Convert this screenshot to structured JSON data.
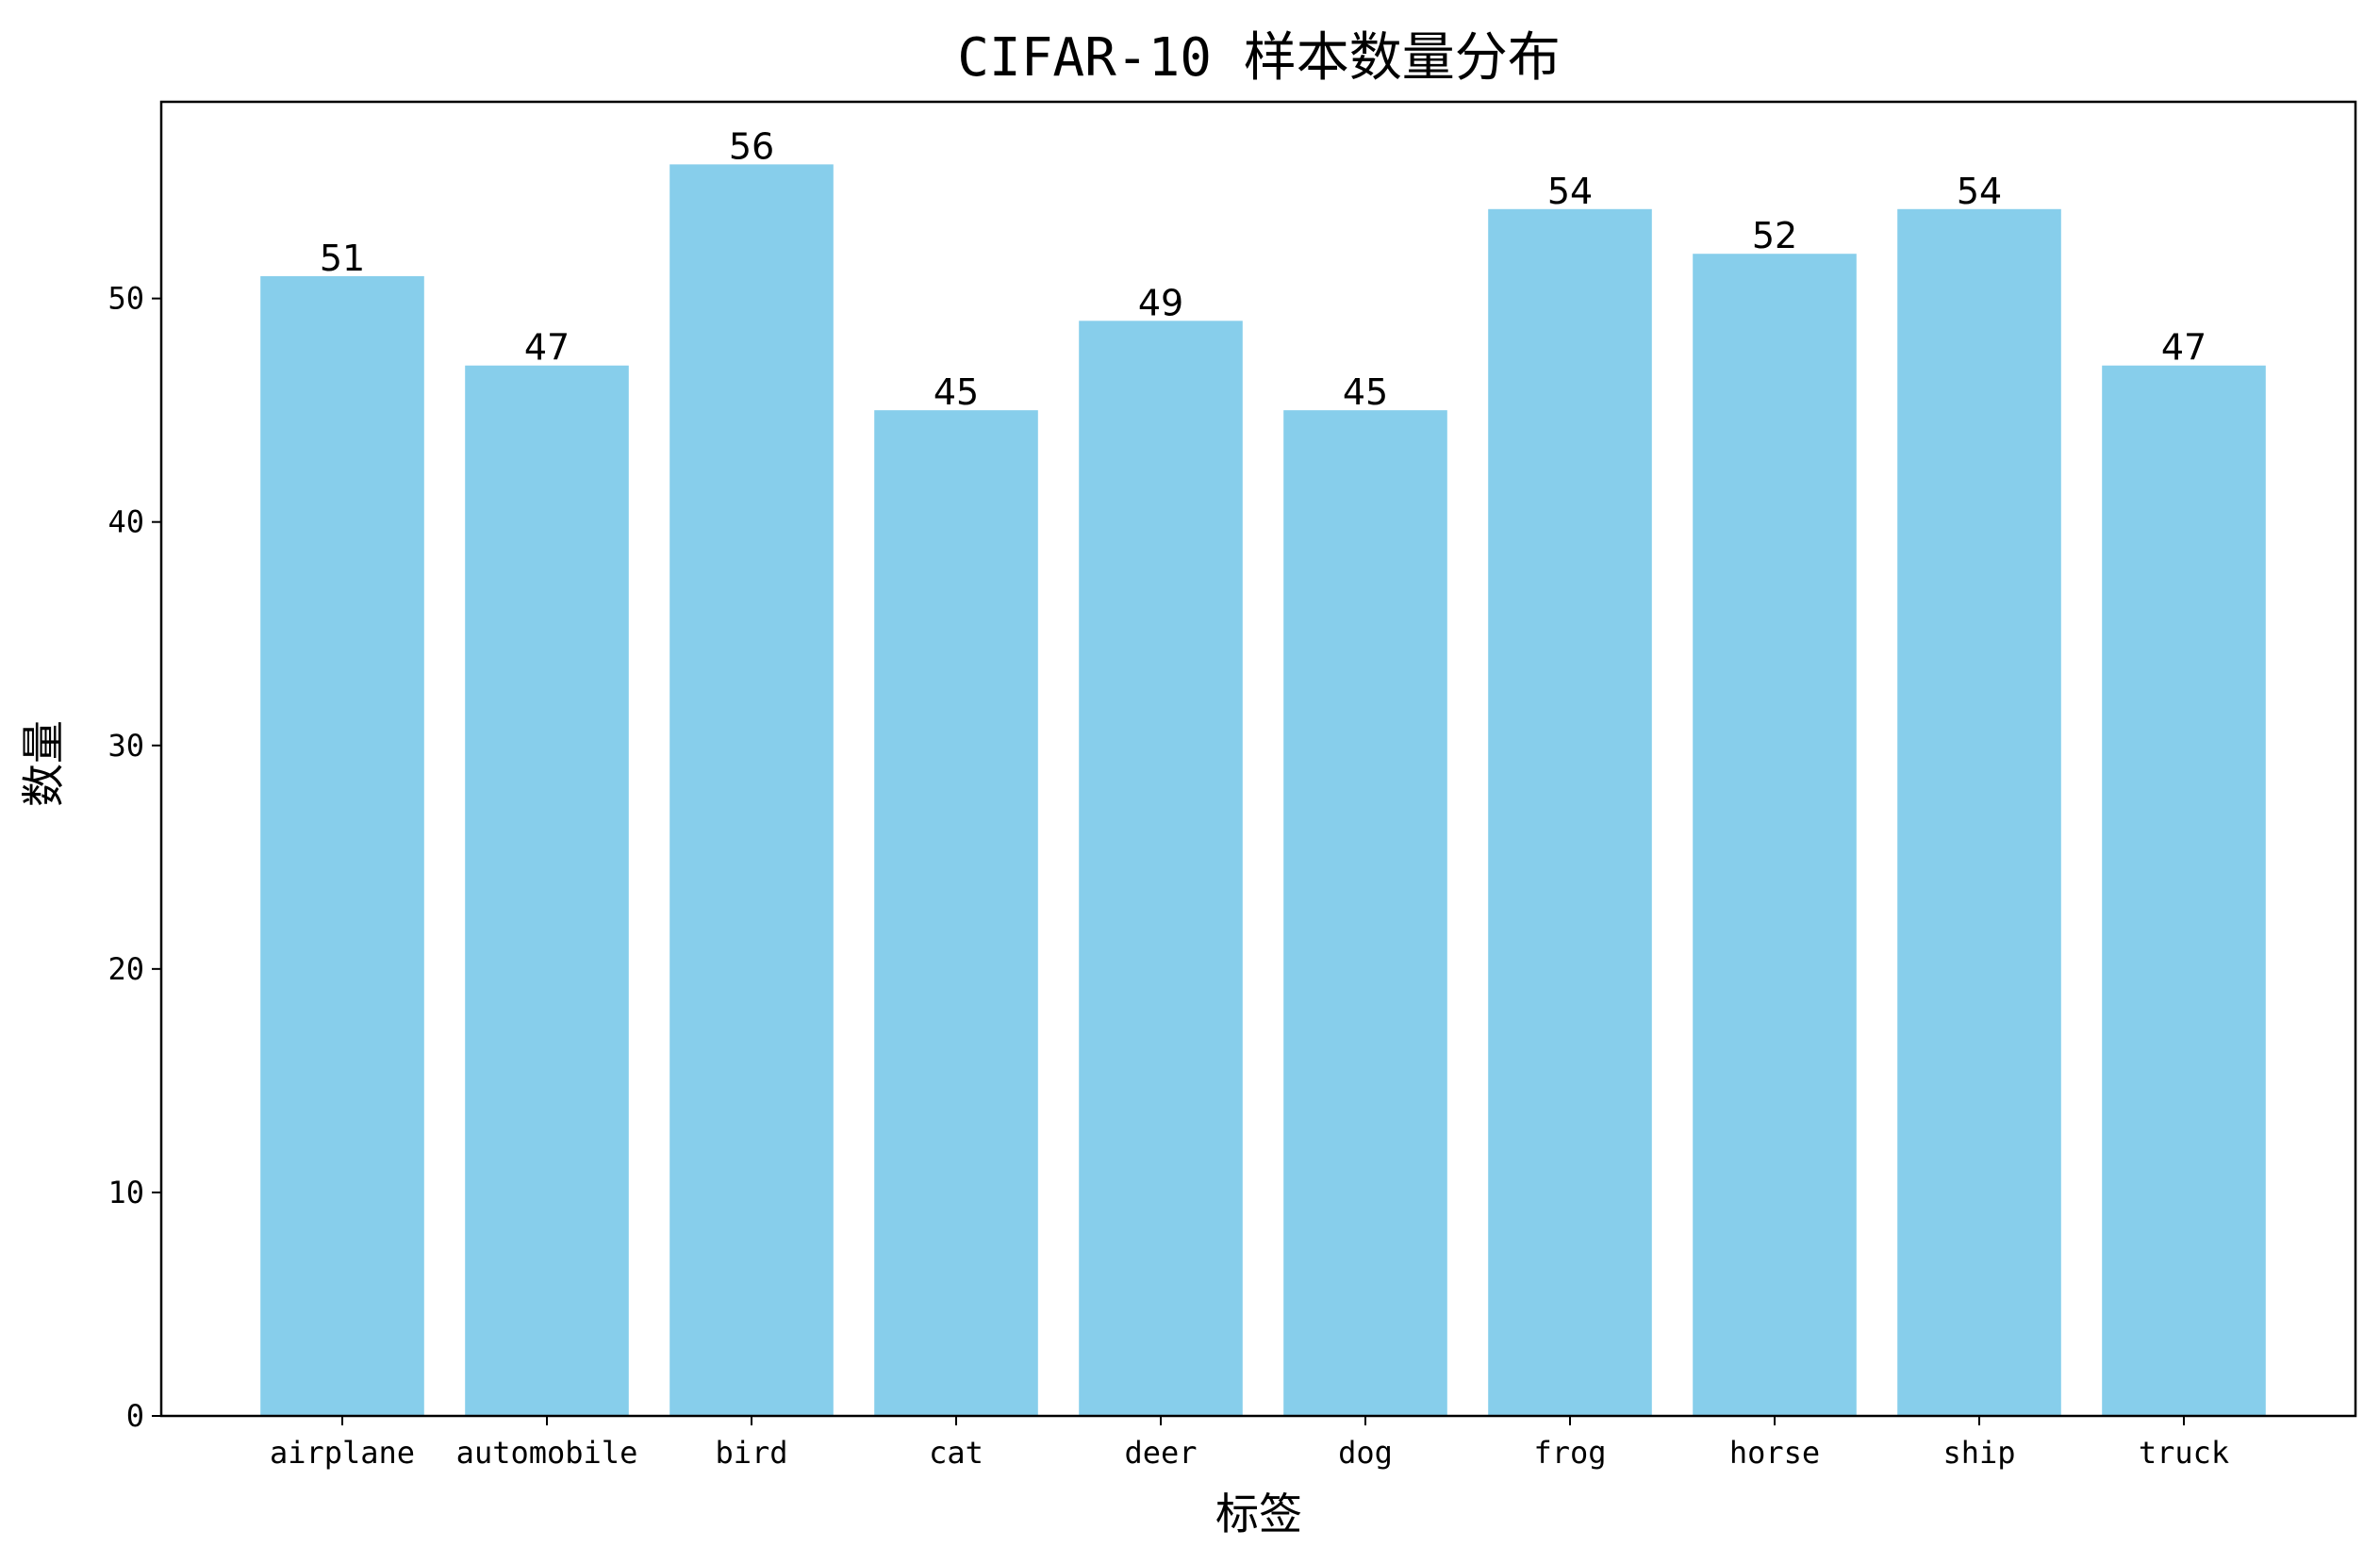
{
  "chart_data": {
    "type": "bar",
    "title": "CIFAR-10 样本数量分布",
    "xlabel": "标签",
    "ylabel": "数量",
    "categories": [
      "airplane",
      "automobile",
      "bird",
      "cat",
      "deer",
      "dog",
      "frog",
      "horse",
      "ship",
      "truck"
    ],
    "values": [
      51,
      47,
      56,
      45,
      49,
      45,
      54,
      52,
      54,
      47
    ],
    "ylim": [
      0,
      58.8
    ],
    "yticks": [
      0,
      10,
      20,
      30,
      40,
      50
    ],
    "bar_color": "#87CEEB",
    "grid": false,
    "data_labels": true
  }
}
